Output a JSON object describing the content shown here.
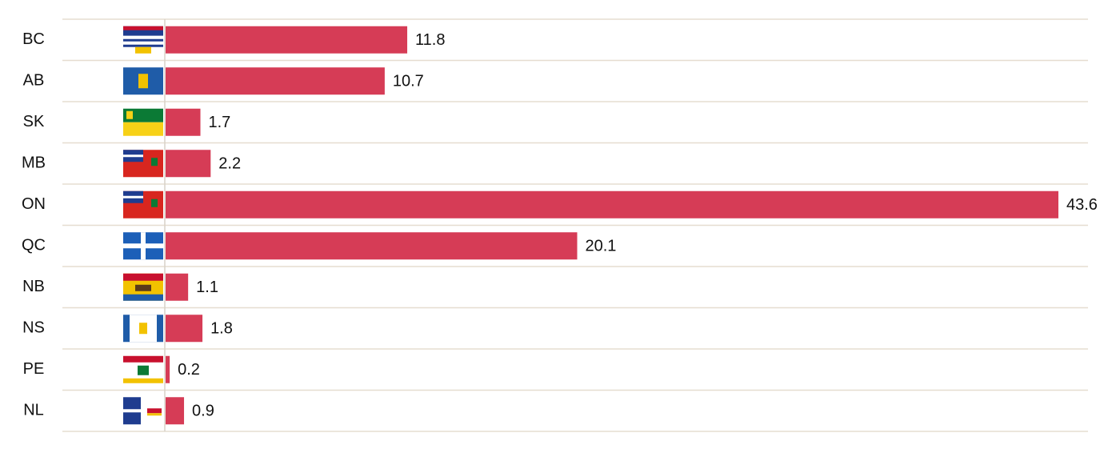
{
  "chart_data": {
    "type": "bar",
    "orientation": "horizontal",
    "categories": [
      "BC",
      "AB",
      "SK",
      "MB",
      "ON",
      "QC",
      "NB",
      "NS",
      "PE",
      "NL"
    ],
    "values": [
      11.8,
      10.7,
      1.7,
      2.2,
      43.6,
      20.1,
      1.1,
      1.8,
      0.2,
      0.9
    ],
    "color": "#d63c56"
  }
}
